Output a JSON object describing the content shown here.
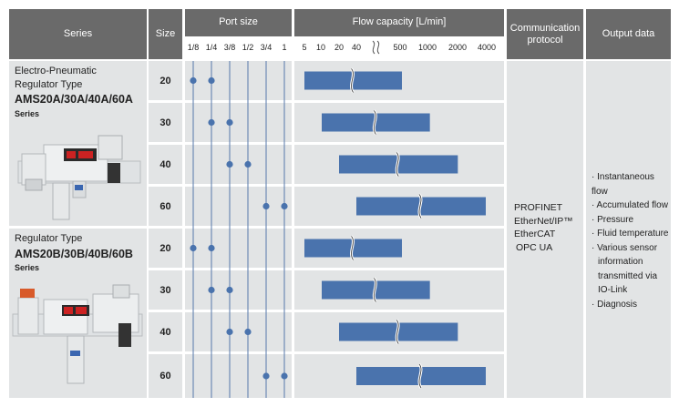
{
  "headers": {
    "series": "Series",
    "size": "Size",
    "port_size": "Port size",
    "flow_capacity": "Flow capacity [L/min]",
    "communication": "Communication protocol",
    "output": "Output data"
  },
  "port_ticks": [
    "1/8",
    "1/4",
    "3/8",
    "1/2",
    "3/4",
    "1"
  ],
  "flow_ticks": [
    "5",
    "10",
    "20",
    "40",
    "500",
    "1000",
    "2000",
    "4000"
  ],
  "groups": [
    {
      "line1": "Electro-Pneumatic",
      "line2": "Regulator Type",
      "model": "AMS20A/30A/40A/60A",
      "suffix": "Series"
    },
    {
      "line1": "Regulator Type",
      "line2": "",
      "model": "AMS20B/30B/40B/60B",
      "suffix": "Series"
    }
  ],
  "communication": [
    "PROFINET",
    "EtherNet/IP™",
    "EtherCAT",
    "OPC UA"
  ],
  "output": [
    "· Instantaneous flow",
    "· Accumulated flow",
    "· Pressure",
    "· Fluid temperature",
    "· Various sensor",
    "information",
    "transmitted via",
    "IO-Link",
    "· Diagnosis"
  ],
  "colors": {
    "header": "#6a6a6a",
    "row_bg": "#e2e4e5",
    "bar": "#4a73ad",
    "line": "#5577aa",
    "dot": "#4a73ad"
  },
  "chart_data": {
    "type": "bar",
    "title": "",
    "xlabel": "Flow capacity [L/min]",
    "categories": [
      "20",
      "30",
      "40",
      "60",
      "20",
      "30",
      "40",
      "60"
    ],
    "series_groups": [
      "AMS20A/30A/40A/60A",
      "AMS20A/30A/40A/60A",
      "AMS20A/30A/40A/60A",
      "AMS20A/30A/40A/60A",
      "AMS20B/30B/40B/60B",
      "AMS20B/30B/40B/60B",
      "AMS20B/30B/40B/60B",
      "AMS20B/30B/40B/60B"
    ],
    "flow_min": [
      5,
      10,
      20,
      40,
      5,
      10,
      20,
      40
    ],
    "flow_max": [
      500,
      1000,
      2000,
      4000,
      500,
      1000,
      2000,
      4000
    ],
    "port_sizes": [
      [
        "1/8",
        "1/4"
      ],
      [
        "1/4",
        "3/8"
      ],
      [
        "3/8",
        "1/2"
      ],
      [
        "3/4",
        "1"
      ],
      [
        "1/8",
        "1/4"
      ],
      [
        "1/4",
        "3/8"
      ],
      [
        "3/8",
        "1/2"
      ],
      [
        "3/4",
        "1"
      ]
    ],
    "x_scale": "log, axis break between 40 and 500",
    "grid": false
  }
}
